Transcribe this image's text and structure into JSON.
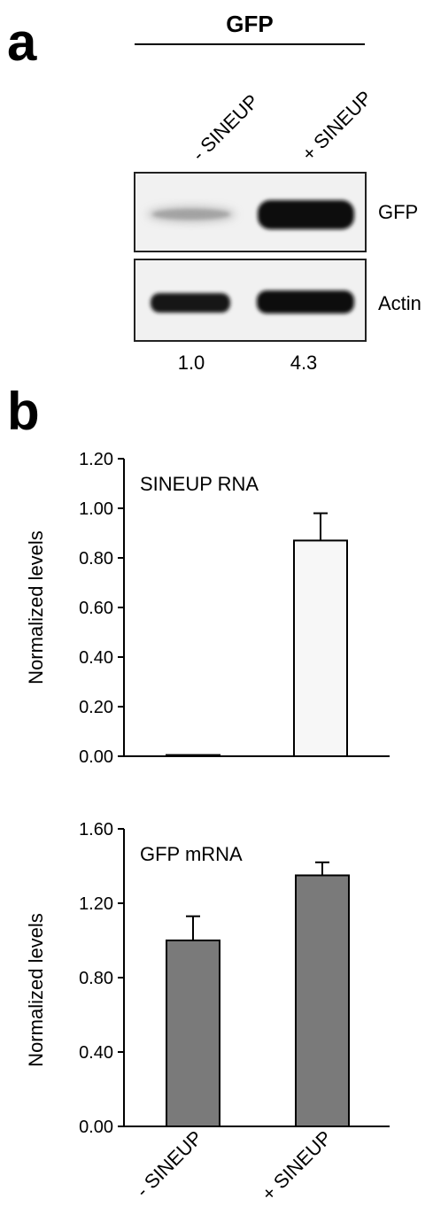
{
  "panel_a": {
    "letter": "a",
    "header": "GFP",
    "lanes": [
      "- SINEUP",
      "+ SINEUP"
    ],
    "blots": [
      {
        "label": "GFP",
        "band_intensity": [
          0.25,
          1.0
        ]
      },
      {
        "label": "Actin",
        "band_intensity": [
          0.9,
          1.0
        ]
      }
    ],
    "quantification": [
      "1.0",
      "4.3"
    ]
  },
  "panel_b": {
    "letter": "b"
  },
  "colors": {
    "sineup_bar": "#f7f7f7",
    "gfp_bar": "#7a7a7a",
    "axis": "#000000",
    "blot_bg": "#f2f2f2",
    "band": "#111111"
  },
  "chart_data": [
    {
      "type": "bar",
      "title": "SINEUP RNA",
      "ylabel": "Normalized levels",
      "xlabel": "",
      "categories": [
        "- SINEUP",
        "+ SINEUP"
      ],
      "values": [
        0.005,
        0.87
      ],
      "errors": [
        0.0,
        0.11
      ],
      "ylim": [
        0,
        1.2
      ],
      "yticks": [
        "0.00",
        "0.20",
        "0.40",
        "0.60",
        "0.80",
        "1.00",
        "1.20"
      ],
      "grid": false
    },
    {
      "type": "bar",
      "title": "GFP mRNA",
      "ylabel": "Normalized levels",
      "xlabel": "",
      "categories": [
        "- SINEUP",
        "+ SINEUP"
      ],
      "values": [
        1.0,
        1.35
      ],
      "errors": [
        0.13,
        0.07
      ],
      "ylim": [
        0,
        1.6
      ],
      "yticks": [
        "0.00",
        "0.40",
        "0.80",
        "1.20",
        "1.60"
      ],
      "grid": false
    }
  ]
}
